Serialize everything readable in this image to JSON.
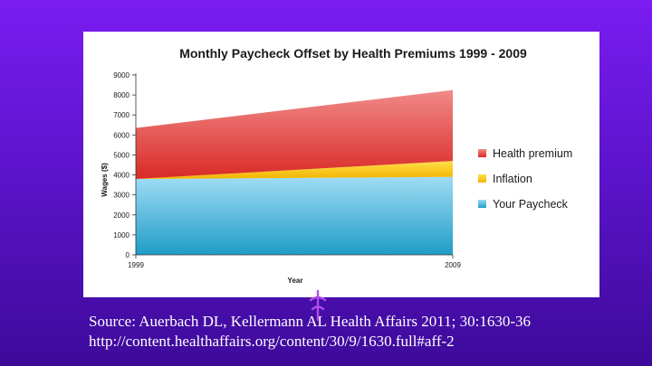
{
  "slide": {
    "source_line1": "Source: Auerbach DL, Kellermann AL Health Affairs 2011; 30:1630-36",
    "source_line2": "http://content.healthaffairs.org/content/30/9/1630.full#aff-2"
  },
  "chart_data": {
    "type": "area",
    "stacked": true,
    "title": "Monthly Paycheck Offset by Health Premiums 1999 - 2009",
    "xlabel": "Year",
    "ylabel": "Wages ($)",
    "x": [
      "1999",
      "2009"
    ],
    "ylim": [
      0,
      9000
    ],
    "yticks": [
      "0",
      "1000",
      "2000",
      "3000",
      "4000",
      "5000",
      "6000",
      "7000",
      "8000",
      "9000"
    ],
    "grid": false,
    "legend_position": "right",
    "series": [
      {
        "name": "Your Paycheck",
        "values": [
          3800,
          3900
        ],
        "color": "#3eb3de"
      },
      {
        "name": "Inflation",
        "values": [
          0,
          800
        ],
        "color": "#f5c400"
      },
      {
        "name": "Health premium",
        "values": [
          2550,
          3550
        ],
        "color": "#e23a36"
      }
    ],
    "legend_order": [
      "Health premium",
      "Inflation",
      "Your Paycheck"
    ]
  }
}
